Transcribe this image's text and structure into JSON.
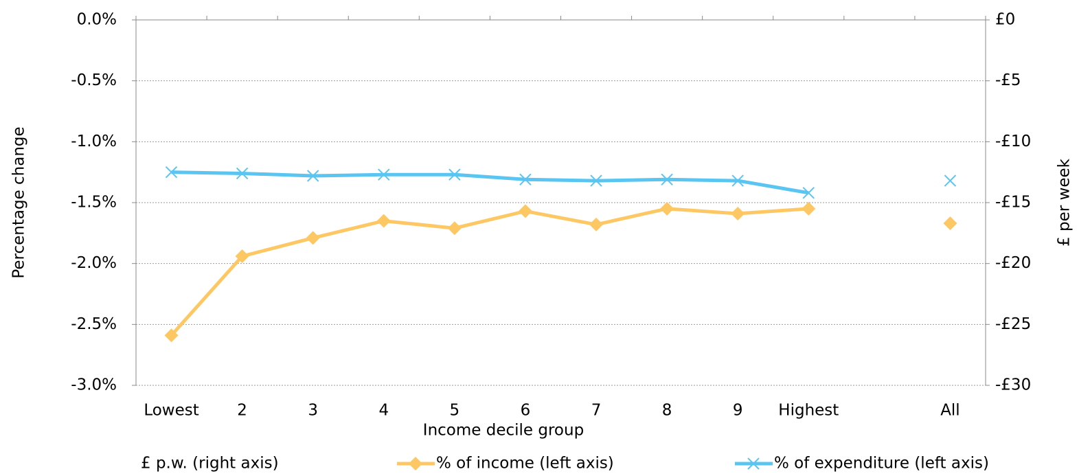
{
  "chart_data": {
    "type": "line",
    "x_label": "Income decile group",
    "y_label": "Percentage change",
    "y2_label": "£ per week",
    "categories": [
      "Lowest",
      "2",
      "3",
      "4",
      "5",
      "6",
      "7",
      "8",
      "9",
      "Highest",
      null,
      "All"
    ],
    "series": [
      {
        "name": "£ p.w. (right axis)",
        "axis": "y2",
        "values": [
          null,
          null,
          null,
          null,
          null,
          null,
          null,
          null,
          null,
          null,
          null,
          null
        ]
      },
      {
        "name": "% of income (left axis)",
        "color": "#fdc864",
        "marker": "diamond",
        "values": [
          -2.59,
          -1.94,
          -1.79,
          -1.65,
          -1.71,
          -1.57,
          -1.68,
          -1.55,
          -1.59,
          -1.55,
          null,
          -1.67
        ]
      },
      {
        "name": "% of expenditure (left axis)",
        "color": "#5bc5f2",
        "marker": "x",
        "values": [
          -1.25,
          -1.26,
          -1.28,
          -1.27,
          -1.27,
          -1.31,
          -1.32,
          -1.31,
          -1.32,
          -1.42,
          null,
          -1.32
        ]
      }
    ],
    "ylim": [
      -3,
      0
    ],
    "yticks": [
      {
        "value": 0,
        "label": "0.0%"
      },
      {
        "value": -0.5,
        "label": "-0.5%"
      },
      {
        "value": -1,
        "label": "-1.0%"
      },
      {
        "value": -1.5,
        "label": "-1.5%"
      },
      {
        "value": -2,
        "label": "-2.0%"
      },
      {
        "value": -2.5,
        "label": "-2.5%"
      },
      {
        "value": -3,
        "label": "-3.0%"
      }
    ],
    "y2lim": [
      -30,
      0
    ],
    "y2ticks": [
      {
        "value": 0,
        "label": "£0"
      },
      {
        "value": -5,
        "label": "-£5"
      },
      {
        "value": -10,
        "label": "-£10"
      },
      {
        "value": -15,
        "label": "-£15"
      },
      {
        "value": -20,
        "label": "-£20"
      },
      {
        "value": -25,
        "label": "-£25"
      },
      {
        "value": -30,
        "label": "-£30"
      }
    ],
    "grid": true,
    "legend": "bottom"
  }
}
